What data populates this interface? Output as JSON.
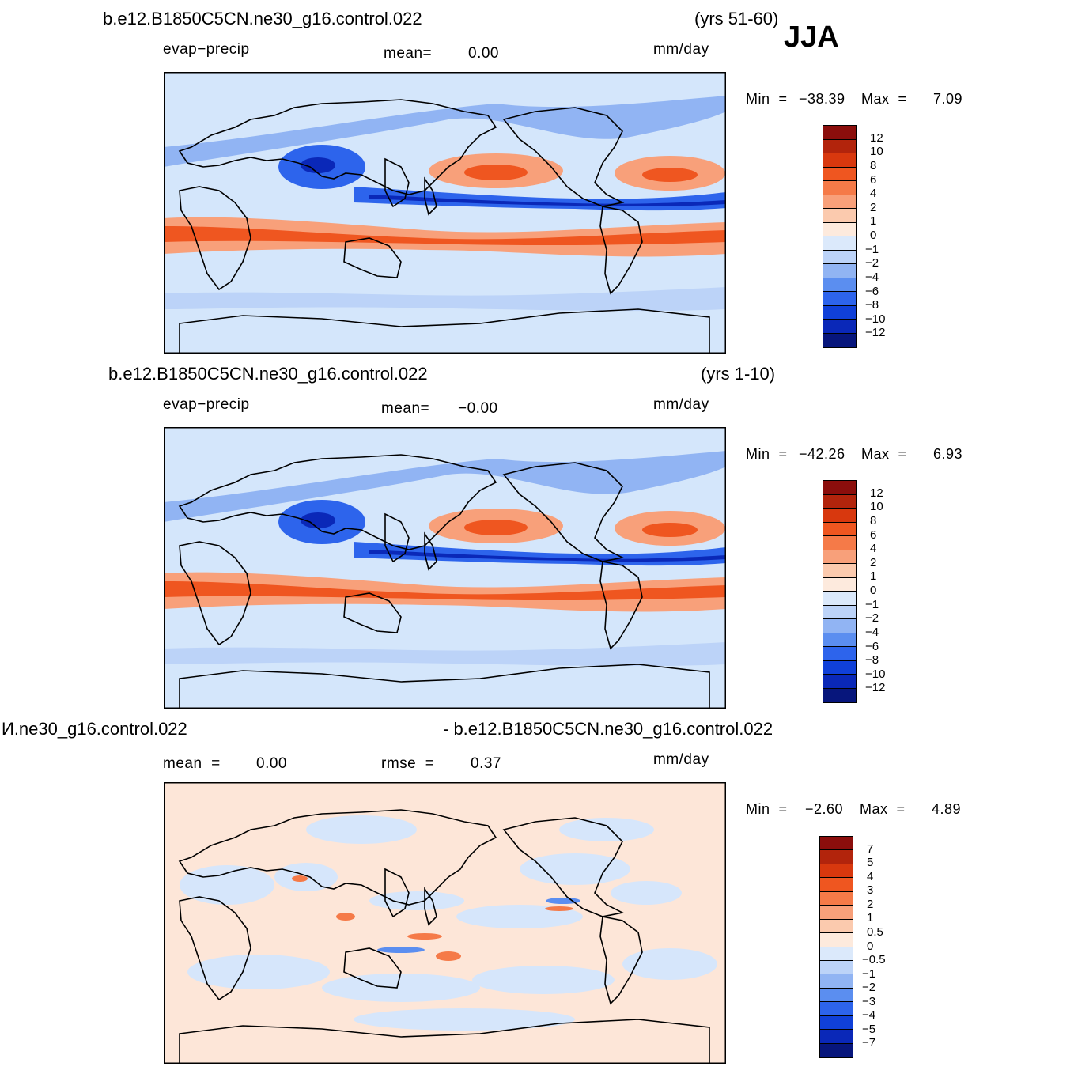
{
  "season": "JJA",
  "panels": [
    {
      "case_title": "b.e12.B1850C5CN.ne30_g16.control.022",
      "years": "(yrs 51-60)",
      "variable": "evap−precip",
      "mean_label": "mean=",
      "mean_value": "0.00",
      "units": "mm/day",
      "min_label": "Min  =",
      "min_value": "−38.39",
      "max_label": "Max  =",
      "max_value": "7.09",
      "map": {
        "kind": "field"
      }
    },
    {
      "case_title": "b.e12.B1850C5CN.ne30_g16.control.022",
      "years": "(yrs 1-10)",
      "variable": "evap−precip",
      "mean_label": "mean=",
      "mean_value": "−0.00",
      "units": "mm/day",
      "min_label": "Min  =",
      "min_value": "−42.26",
      "max_label": "Max  =",
      "max_value": "6.93",
      "map": {
        "kind": "field"
      }
    },
    {
      "case_title_left": "И.ne30_g16.control.022",
      "case_title_right": "- b.e12.B1850C5CN.ne30_g16.control.022",
      "mean_label": "mean  =",
      "mean_value": "0.00",
      "rmse_label": "rmse  =",
      "rmse_value": "0.37",
      "units": "mm/day",
      "min_label": "Min  =",
      "min_value": "−2.60",
      "max_label": "Max  =",
      "max_value": "4.89",
      "map": {
        "kind": "diff"
      }
    }
  ],
  "colorbars": [
    {
      "labels": [
        "12",
        "10",
        "8",
        "6",
        "4",
        "2",
        "1",
        "0",
        "−1",
        "−2",
        "−4",
        "−6",
        "−8",
        "−10",
        "−12"
      ],
      "colors": [
        "#8b0e0c",
        "#b2240c",
        "#d8380e",
        "#ef5620",
        "#f57a48",
        "#f8a07a",
        "#fbcaae",
        "#fdeadd",
        "#dbe9fb",
        "#bcd3f8",
        "#91b4f3",
        "#5b8ef0",
        "#2d64ec",
        "#1040d8",
        "#0a28b8",
        "#07167c"
      ]
    },
    {
      "labels": [
        "12",
        "10",
        "8",
        "6",
        "4",
        "2",
        "1",
        "0",
        "−1",
        "−2",
        "−4",
        "−6",
        "−8",
        "−10",
        "−12"
      ],
      "colors": [
        "#8b0e0c",
        "#b2240c",
        "#d8380e",
        "#ef5620",
        "#f57a48",
        "#f8a07a",
        "#fbcaae",
        "#fdeadd",
        "#dbe9fb",
        "#bcd3f8",
        "#91b4f3",
        "#5b8ef0",
        "#2d64ec",
        "#1040d8",
        "#0a28b8",
        "#07167c"
      ]
    },
    {
      "labels": [
        "7",
        "5",
        "4",
        "3",
        "2",
        "1",
        "0.5",
        "0",
        "−0.5",
        "−1",
        "−2",
        "−3",
        "−4",
        "−5",
        "−7"
      ],
      "colors": [
        "#8b0e0c",
        "#b2240c",
        "#d8380e",
        "#ef5620",
        "#f57a48",
        "#f8a07a",
        "#fbcaae",
        "#fdeadd",
        "#dbe9fb",
        "#bcd3f8",
        "#91b4f3",
        "#5b8ef0",
        "#2d64ec",
        "#1040d8",
        "#0a28b8",
        "#07167c"
      ]
    }
  ]
}
